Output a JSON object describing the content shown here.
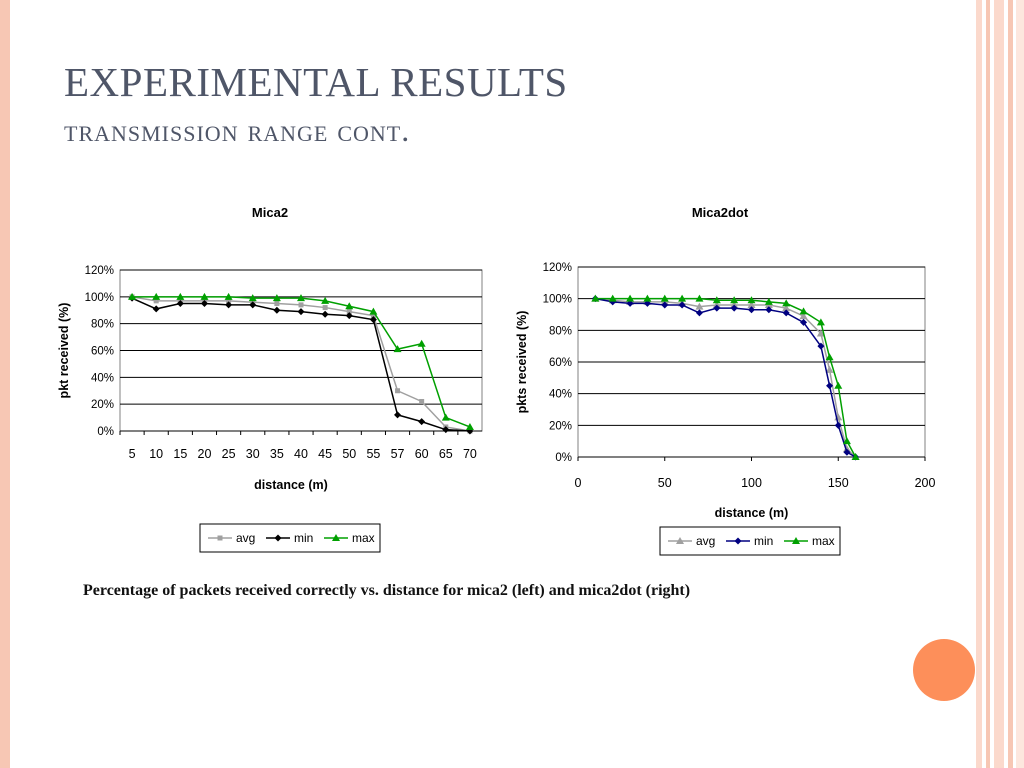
{
  "slide": {
    "title": "EXPERIMENTAL RESULTS",
    "subtitle": "transmission range cont.",
    "caption": "Percentage of packets received correctly vs. distance for mica2 (left) and mica2dot  (right)",
    "colors": {
      "title": "#4f5668",
      "accent_orange": "#fd8f5a",
      "stripe": "#f7c7b4"
    }
  },
  "chart_data": [
    {
      "type": "line",
      "title": "Mica2",
      "xlabel": "distance (m)",
      "ylabel": "pkt received (%)",
      "categories": [
        "5",
        "10",
        "15",
        "20",
        "25",
        "30",
        "35",
        "40",
        "45",
        "50",
        "55",
        "57",
        "60",
        "65",
        "70"
      ],
      "ylim": [
        0,
        120
      ],
      "yticks": [
        "0%",
        "20%",
        "40%",
        "60%",
        "80%",
        "100%",
        "120%"
      ],
      "grid": true,
      "legend_position": "bottom",
      "series": [
        {
          "name": "avg",
          "color": "#a0a0a0",
          "marker": "square",
          "values": [
            100,
            97,
            97,
            97,
            97,
            96,
            95,
            94,
            92,
            89,
            86,
            30,
            22,
            3,
            0
          ]
        },
        {
          "name": "min",
          "color": "#000000",
          "marker": "diamond",
          "values": [
            99,
            91,
            95,
            95,
            94,
            94,
            90,
            89,
            87,
            86,
            83,
            12,
            7,
            1,
            0
          ]
        },
        {
          "name": "max",
          "color": "#00a000",
          "marker": "triangle",
          "values": [
            100,
            100,
            100,
            100,
            100,
            99,
            99,
            99,
            97,
            93,
            89,
            61,
            65,
            10,
            3
          ]
        }
      ]
    },
    {
      "type": "line",
      "title": "Mica2dot",
      "xlabel": "distance (m)",
      "ylabel": "pkts received (%)",
      "xlim": [
        0,
        200
      ],
      "xticks": [
        0,
        50,
        100,
        150,
        200
      ],
      "ylim": [
        0,
        120
      ],
      "yticks": [
        "0%",
        "20%",
        "40%",
        "60%",
        "80%",
        "100%",
        "120%"
      ],
      "grid": true,
      "legend_position": "bottom",
      "series": [
        {
          "name": "avg",
          "color": "#a0a0a0",
          "marker": "triangle",
          "x": [
            10,
            20,
            30,
            40,
            50,
            60,
            70,
            80,
            90,
            100,
            110,
            120,
            130,
            140,
            145,
            150,
            155,
            160
          ],
          "values": [
            100,
            99,
            98,
            98,
            98,
            97,
            95,
            96,
            96,
            96,
            96,
            94,
            89,
            78,
            55,
            25,
            5,
            0
          ]
        },
        {
          "name": "min",
          "color": "#000080",
          "marker": "diamond",
          "x": [
            10,
            20,
            30,
            40,
            50,
            60,
            70,
            80,
            90,
            100,
            110,
            120,
            130,
            140,
            145,
            150,
            155,
            160
          ],
          "values": [
            100,
            98,
            97,
            97,
            96,
            96,
            91,
            94,
            94,
            93,
            93,
            91,
            85,
            70,
            45,
            20,
            3,
            0
          ]
        },
        {
          "name": "max",
          "color": "#00a000",
          "marker": "triangle",
          "x": [
            10,
            20,
            30,
            40,
            50,
            60,
            70,
            80,
            90,
            100,
            110,
            120,
            130,
            140,
            145,
            150,
            155,
            160
          ],
          "values": [
            100,
            100,
            100,
            100,
            100,
            100,
            100,
            99,
            99,
            99,
            98,
            97,
            92,
            85,
            63,
            45,
            10,
            0
          ]
        }
      ]
    }
  ]
}
